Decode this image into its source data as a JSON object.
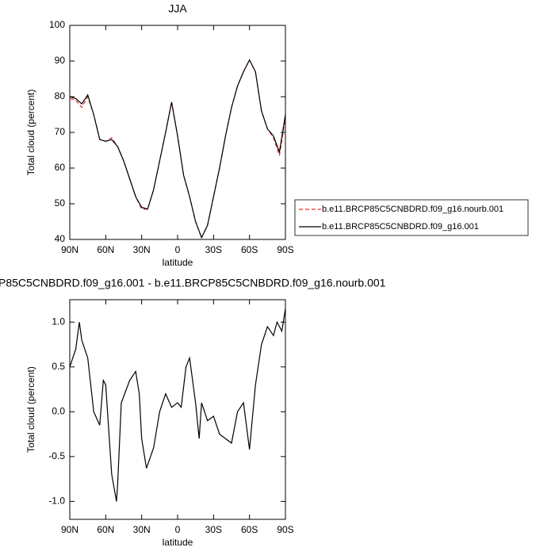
{
  "chart_data": [
    {
      "type": "line",
      "title": "JJA",
      "x_label": "latitude",
      "y_label": "Total cloud (percent)",
      "x": [
        90,
        85,
        80,
        75,
        70,
        65,
        60,
        55,
        50,
        45,
        40,
        35,
        30,
        25,
        20,
        15,
        10,
        5,
        0,
        -5,
        -10,
        -15,
        -20,
        -25,
        -30,
        -35,
        -40,
        -45,
        -50,
        -55,
        -60,
        -65,
        -70,
        -75,
        -80,
        -85,
        -90
      ],
      "series": [
        {
          "name": "b.e11.BRCP85C5CNBDRD.f09_g16.nourb.001",
          "color": "#e0302a",
          "dashed": true,
          "values": [
            79.5,
            79,
            77,
            80,
            75,
            68,
            67.5,
            68.5,
            66,
            62,
            57,
            52,
            48.5,
            48.5,
            54,
            62,
            70,
            78.5,
            69,
            58,
            52,
            45,
            40.5,
            44,
            52,
            60,
            69,
            77,
            83,
            87,
            90.3,
            87,
            76,
            71,
            68.5,
            63.5,
            74
          ]
        },
        {
          "name": "b.e11.BRCP85C5CNBDRD.f09_g16.001",
          "color": "#000000",
          "dashed": false,
          "values": [
            80,
            79.5,
            78,
            80.5,
            75,
            68,
            67.5,
            68,
            66,
            62,
            57,
            52,
            49,
            48.5,
            54,
            62,
            70,
            78.5,
            69,
            58,
            52,
            45,
            40.5,
            44,
            52,
            60,
            69,
            77,
            83,
            87,
            90.3,
            87,
            76,
            71,
            69,
            64.5,
            75
          ]
        }
      ],
      "xlim": [
        90,
        -90
      ],
      "xticks": [
        {
          "value": 90,
          "label": "90N"
        },
        {
          "value": 60,
          "label": "60N"
        },
        {
          "value": 30,
          "label": "30N"
        },
        0,
        {
          "value": -30,
          "label": "30S"
        },
        {
          "value": -60,
          "label": "60S"
        },
        {
          "value": -90,
          "label": "90S"
        }
      ],
      "ylim": [
        40,
        100
      ],
      "yticks": [
        40,
        50,
        60,
        70,
        80,
        90,
        100
      ],
      "legend": "right"
    },
    {
      "type": "line",
      "title": "P85C5CNBDRD.f09_g16.001 - b.e11.BRCP85C5CNBDRD.f09_g16.nourb.001",
      "x_label": "latitude",
      "y_label": "Total cloud (percent)",
      "x": [
        90,
        85,
        82,
        80,
        75,
        70,
        65,
        62,
        60,
        55,
        51,
        50,
        47,
        40,
        35,
        32,
        30,
        26,
        20,
        15,
        10,
        5,
        0,
        -3,
        -7,
        -10,
        -12,
        -15,
        -18,
        -20,
        -25,
        -30,
        -35,
        -40,
        -45,
        -50,
        -55,
        -60,
        -65,
        -70,
        -75,
        -80,
        -83,
        -87,
        -90
      ],
      "values": [
        0.5,
        0.7,
        1.0,
        0.8,
        0.6,
        0.0,
        -0.15,
        0.35,
        0.3,
        -0.7,
        -1.0,
        -0.8,
        0.1,
        0.35,
        0.45,
        0.2,
        -0.3,
        -0.63,
        -0.4,
        0.0,
        0.2,
        0.05,
        0.1,
        0.05,
        0.5,
        0.6,
        0.4,
        0.1,
        -0.3,
        0.1,
        -0.1,
        -0.05,
        -0.25,
        -0.3,
        -0.35,
        0.0,
        0.1,
        -0.42,
        0.3,
        0.75,
        0.95,
        0.85,
        1.0,
        0.9,
        1.15
      ],
      "color": "#000000",
      "xlim": [
        90,
        -90
      ],
      "xticks": [
        {
          "value": 90,
          "label": "90N"
        },
        {
          "value": 60,
          "label": "60N"
        },
        {
          "value": 30,
          "label": "30N"
        },
        0,
        {
          "value": -30,
          "label": "30S"
        },
        {
          "value": -60,
          "label": "60S"
        },
        {
          "value": -90,
          "label": "90S"
        }
      ],
      "ylim": [
        -1.2,
        1.25
      ],
      "yticks": [
        {
          "value": -1,
          "label": "-1.0"
        },
        -0.5,
        {
          "value": 0,
          "label": "0.0"
        },
        0.5,
        {
          "value": 1,
          "label": "1.0"
        }
      ]
    }
  ]
}
